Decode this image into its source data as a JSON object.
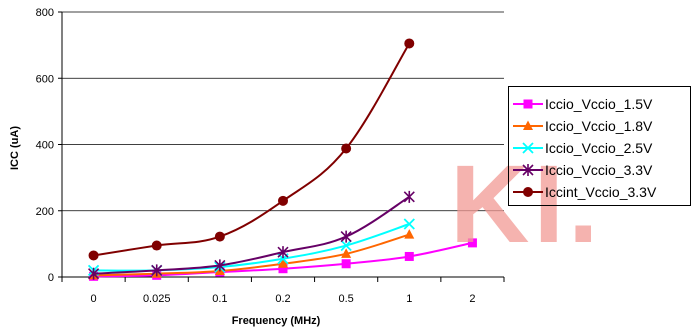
{
  "chart_data": {
    "type": "line",
    "categories": [
      "0",
      "0.025",
      "0.1",
      "0.2",
      "0.5",
      "1",
      "2"
    ],
    "xlabel": "Frequency (MHz)",
    "ylabel": "ICC (uA)",
    "ylim": [
      0,
      800
    ],
    "yticks": [
      "0",
      "200",
      "400",
      "600",
      "800"
    ],
    "grid": "horizontal",
    "legend_position": "right",
    "series": [
      {
        "name": "Iccio_Vccio_1.5V",
        "color": "#ff00ff",
        "marker": "square",
        "values": [
          2,
          5,
          15,
          25,
          40,
          62,
          103
        ]
      },
      {
        "name": "Iccio_Vccio_1.8V",
        "color": "#ff6600",
        "marker": "triangle",
        "values": [
          5,
          10,
          18,
          40,
          70,
          128,
          null
        ]
      },
      {
        "name": "Iccio_Vccio_2.5V",
        "color": "#00ffff",
        "marker": "x",
        "values": [
          20,
          20,
          30,
          55,
          95,
          160,
          null
        ]
      },
      {
        "name": "Iccio_Vccio_3.3V",
        "color": "#660066",
        "marker": "star",
        "values": [
          10,
          20,
          35,
          75,
          122,
          242,
          null
        ]
      },
      {
        "name": "Iccint_Vccio_3.3V",
        "color": "#800000",
        "marker": "circle",
        "values": [
          65,
          95,
          122,
          230,
          388,
          705,
          null
        ]
      }
    ]
  },
  "watermark": "KI."
}
